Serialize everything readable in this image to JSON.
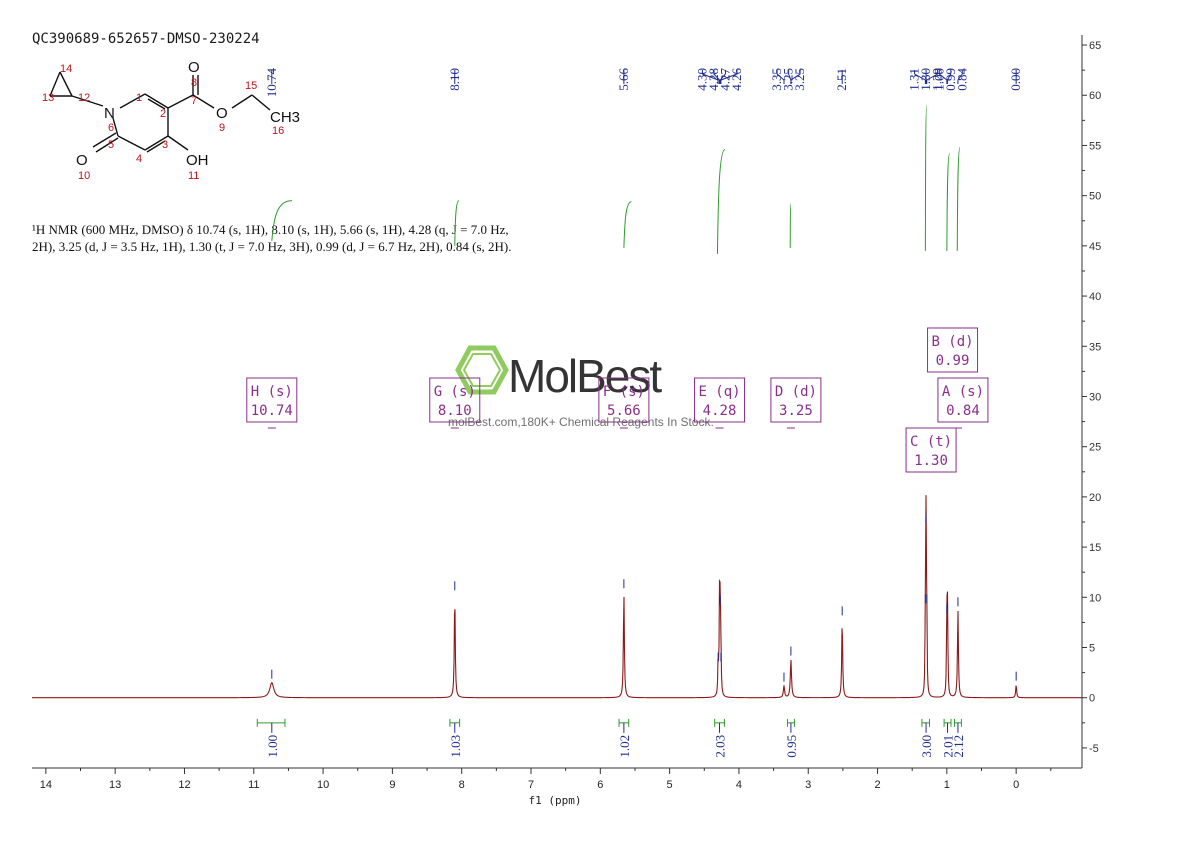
{
  "sample_id": "QC390689-652657-DMSO-230224",
  "description_lines": [
    "¹H NMR (600 MHz, DMSO) δ 10.74 (s, 1H), 8.10 (s, 1H), 5.66 (s, 1H), 4.28 (q, J = 7.0 Hz,",
    "2H), 3.25 (d, J = 3.5 Hz, 1H), 1.30 (t, J = 7.0 Hz, 3H), 0.99 (d, J = 6.7 Hz, 2H), 0.84 (s, 2H)."
  ],
  "watermark": {
    "brand": "MolBest",
    "tagline": "molBest.com,180K+ Chemical Reagents In Stock.",
    "brand_color": "#7cc242"
  },
  "molecule": {
    "atoms": [
      "O",
      "O",
      "N",
      "O",
      "OH",
      "CH3"
    ],
    "numbers": [
      "1",
      "2",
      "3",
      "4",
      "5",
      "6",
      "7",
      "8",
      "9",
      "10",
      "11",
      "12",
      "13",
      "14",
      "15",
      "16"
    ]
  },
  "colors": {
    "spectrum": "#8b1a1a",
    "integral_curve": "#2e9a2e",
    "peak_label": "#1f2b8f",
    "multiplet_box": "#8b2f8b",
    "atom_number": "#c0141c"
  },
  "chart_data": {
    "type": "line",
    "title": "QC390689-652657-DMSO-230224",
    "xlabel": "f1 (ppm)",
    "ylabel": "",
    "xlim": [
      14.2,
      -0.95
    ],
    "ylim": [
      -7,
      66
    ],
    "x_ticks": [
      "14",
      "13",
      "12",
      "11",
      "10",
      "9",
      "8",
      "7",
      "6",
      "5",
      "4",
      "3",
      "2",
      "1",
      "0"
    ],
    "y_ticks": [
      "65",
      "60",
      "55",
      "50",
      "45",
      "40",
      "35",
      "30",
      "25",
      "20",
      "15",
      "10",
      "5",
      "0",
      "-5"
    ],
    "peak_labels": [
      "10.74",
      "8.10",
      "5.66",
      "4.30",
      "4.28",
      "4.27",
      "4.26",
      "3.35",
      "3.25",
      "3.25",
      "2.51",
      "1.31",
      "1.30",
      "1.29",
      "1.00",
      "0.99",
      "0.84",
      "0.00"
    ],
    "peak_label_anchor_ppm": [
      10.74,
      8.1,
      5.66,
      4.3,
      4.28,
      4.27,
      4.26,
      3.35,
      3.25,
      3.25,
      2.51,
      1.31,
      1.3,
      1.29,
      1.0,
      0.99,
      0.84,
      0.0
    ],
    "series": [
      {
        "peaks": [
          {
            "ppm": 10.74,
            "height": 1.5,
            "width": 0.035
          },
          {
            "ppm": 8.1,
            "height": 10.3,
            "width": 0.008
          },
          {
            "ppm": 5.66,
            "height": 10.5,
            "width": 0.008
          },
          {
            "ppm": 4.3,
            "height": 3.2,
            "width": 0.006
          },
          {
            "ppm": 4.28,
            "height": 8.9,
            "width": 0.006
          },
          {
            "ppm": 4.27,
            "height": 8.9,
            "width": 0.006
          },
          {
            "ppm": 4.26,
            "height": 3.2,
            "width": 0.006
          },
          {
            "ppm": 3.35,
            "height": 1.2,
            "width": 0.01
          },
          {
            "ppm": 3.25,
            "height": 3.8,
            "width": 0.01
          },
          {
            "ppm": 2.51,
            "height": 7.8,
            "width": 0.008
          },
          {
            "ppm": 1.31,
            "height": 9.0,
            "width": 0.005
          },
          {
            "ppm": 1.3,
            "height": 17.0,
            "width": 0.005
          },
          {
            "ppm": 1.29,
            "height": 9.0,
            "width": 0.005
          },
          {
            "ppm": 1.0,
            "height": 8.0,
            "width": 0.006
          },
          {
            "ppm": 0.99,
            "height": 8.3,
            "width": 0.006
          },
          {
            "ppm": 0.84,
            "height": 8.7,
            "width": 0.008
          },
          {
            "ppm": 0.0,
            "height": 1.3,
            "width": 0.008
          }
        ]
      }
    ],
    "multiplets": [
      {
        "letter": "H",
        "type": "s",
        "shift": "10.74",
        "ppm": 10.74
      },
      {
        "letter": "G",
        "type": "s",
        "shift": "8.10",
        "ppm": 8.1
      },
      {
        "letter": "F",
        "type": "s",
        "shift": "5.66",
        "ppm": 5.66
      },
      {
        "letter": "E",
        "type": "q",
        "shift": "4.28",
        "ppm": 4.28
      },
      {
        "letter": "D",
        "type": "d",
        "shift": "3.25",
        "ppm": 3.25
      },
      {
        "letter": "B",
        "type": "d",
        "shift": "0.99",
        "ppm": 0.99
      },
      {
        "letter": "A",
        "type": "s",
        "shift": "0.84",
        "ppm": 0.84
      },
      {
        "letter": "C",
        "type": "t",
        "shift": "1.30",
        "ppm": 1.3
      }
    ],
    "integrals": [
      {
        "value": "1.00",
        "ppm": 10.74,
        "range": [
          10.95,
          10.55
        ]
      },
      {
        "value": "1.03",
        "ppm": 8.1,
        "range": [
          8.17,
          8.03
        ]
      },
      {
        "value": "1.02",
        "ppm": 5.66,
        "range": [
          5.73,
          5.59
        ]
      },
      {
        "value": "2.03",
        "ppm": 4.28,
        "range": [
          4.35,
          4.21
        ]
      },
      {
        "value": "0.95",
        "ppm": 3.25,
        "range": [
          3.3,
          3.2
        ]
      },
      {
        "value": "3.00",
        "ppm": 1.3,
        "range": [
          1.36,
          1.25
        ]
      },
      {
        "value": "2.01",
        "ppm": 0.99,
        "range": [
          1.04,
          0.94
        ]
      },
      {
        "value": "2.12",
        "ppm": 0.84,
        "range": [
          0.89,
          0.79
        ]
      }
    ],
    "integral_curves": [
      {
        "ppm_start": 10.74,
        "ppm_end": 10.45,
        "y_start": 45.5,
        "y_end": 49.5
      },
      {
        "ppm_start": 8.1,
        "ppm_end": 8.04,
        "y_start": 45.0,
        "y_end": 49.5
      },
      {
        "ppm_start": 5.66,
        "ppm_end": 5.55,
        "y_start": 44.8,
        "y_end": 49.4
      },
      {
        "ppm_start": 4.31,
        "ppm_end": 4.2,
        "y_start": 44.2,
        "y_end": 54.6
      },
      {
        "ppm_start": 3.26,
        "ppm_end": 3.25,
        "y_start": 44.8,
        "y_end": 49.2
      },
      {
        "ppm_start": 1.31,
        "ppm_end": 1.29,
        "y_start": 44.5,
        "y_end": 59.0
      },
      {
        "ppm_start": 1.0,
        "ppm_end": 0.96,
        "y_start": 44.5,
        "y_end": 54.2
      },
      {
        "ppm_start": 0.85,
        "ppm_end": 0.81,
        "y_start": 44.5,
        "y_end": 54.8
      }
    ]
  }
}
